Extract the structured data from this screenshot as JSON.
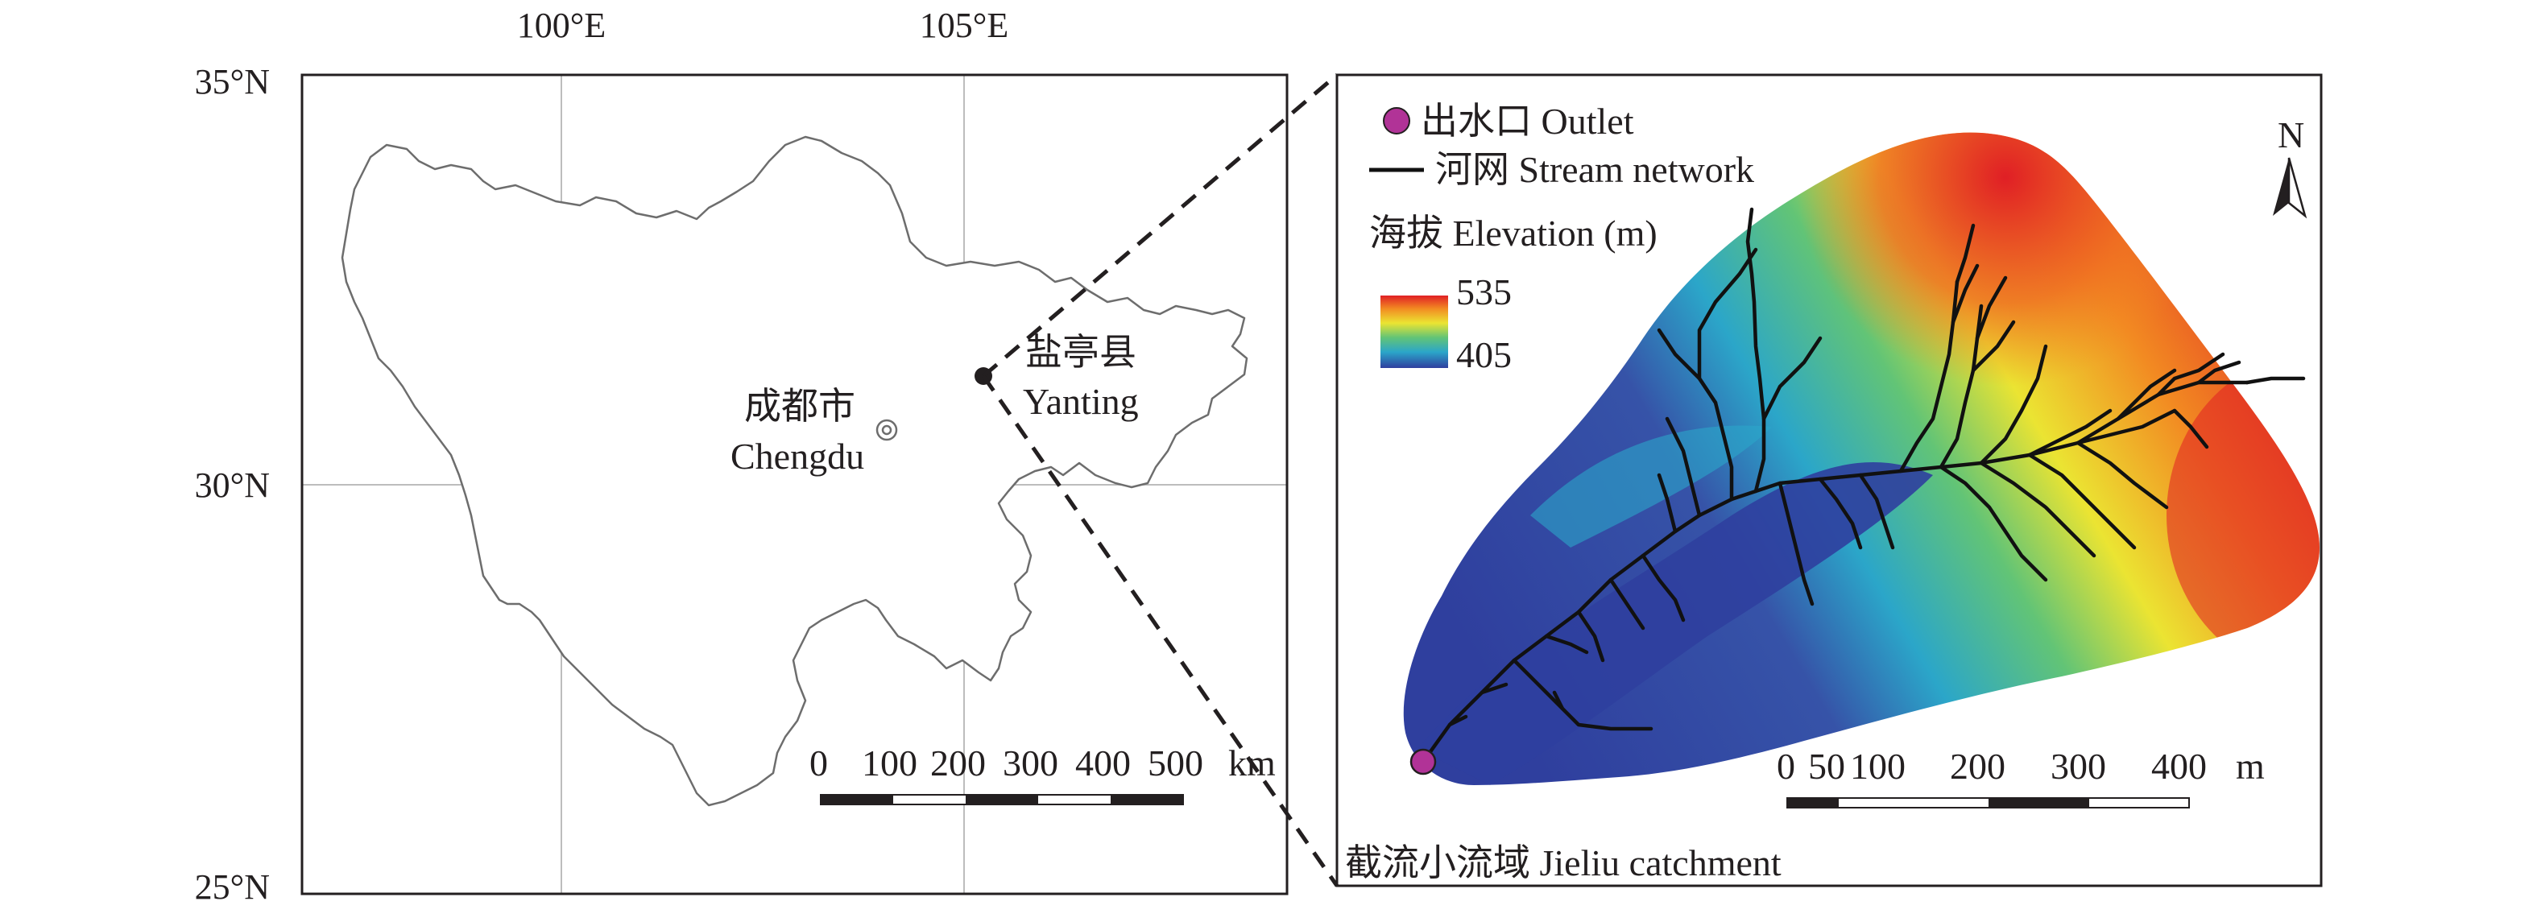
{
  "coordinates": {
    "lon_labels": [
      "100°E",
      "105°E"
    ],
    "lat_labels": [
      "35°N",
      "30°N",
      "25°N"
    ]
  },
  "left_map": {
    "city": {
      "name_cn": "成都市",
      "name_en": "Chengdu"
    },
    "county": {
      "name_cn": "盐亭县",
      "name_en": "Yanting"
    },
    "scale_bar": {
      "ticks": [
        "0",
        "100",
        "200",
        "300",
        "400",
        "500"
      ],
      "unit": "km"
    }
  },
  "right_map": {
    "legend": {
      "outlet": "出水口 Outlet",
      "stream": "河网 Stream network",
      "elevation_title": "海拔 Elevation (m)",
      "elevation_max": "535",
      "elevation_min": "405"
    },
    "north_arrow": "N",
    "scale_bar": {
      "ticks": [
        "0",
        "50",
        "100",
        "200",
        "300",
        "400"
      ],
      "unit": "m"
    },
    "caption": "截流小流域 Jieliu catchment"
  },
  "colors": {
    "outlet": "#b13397",
    "elev_low": "#2f3f9e",
    "elev_high": "#e01f25",
    "frame": "#231f20",
    "grid": "#bdbdbd"
  }
}
